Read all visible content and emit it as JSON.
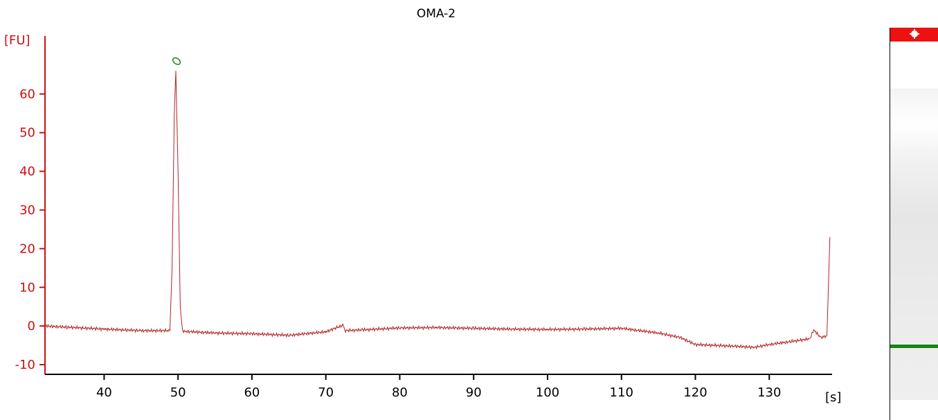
{
  "header": {
    "title": "OMA-2"
  },
  "chart_data": {
    "type": "line",
    "title": "OMA-2",
    "xlabel": "[s]",
    "ylabel": "[FU]",
    "xlim": [
      32,
      138.5
    ],
    "ylim": [
      -12.5,
      75
    ],
    "x_ticks": [
      40,
      50,
      60,
      70,
      80,
      90,
      100,
      110,
      120,
      130
    ],
    "y_ticks": [
      -10,
      0,
      10,
      20,
      30,
      40,
      50,
      60
    ],
    "grid": false,
    "line_color": "#b22222",
    "axis_color": "#cc1111",
    "peak_marker": {
      "x": 49.8,
      "y": 68.5,
      "color": "#118811"
    },
    "series": [
      {
        "values_x": [
          32,
          35,
          40,
          45,
          48.9,
          49.2,
          49.5,
          49.7,
          50.0,
          50.3,
          50.6,
          51,
          55,
          60,
          65,
          70,
          72.3,
          72.6,
          75,
          80,
          85,
          90,
          95,
          100,
          105,
          110,
          115,
          118,
          120,
          125,
          128,
          130,
          133,
          135.5,
          136,
          137,
          137.8,
          138,
          138.2
        ],
        "values_y": [
          0,
          -0.3,
          -0.8,
          -1.2,
          -1.2,
          15,
          55,
          66,
          40,
          5,
          -1.2,
          -1.4,
          -1.8,
          -2.0,
          -2.4,
          -1.5,
          0.2,
          -1.2,
          -1.0,
          -0.5,
          -0.4,
          -0.6,
          -0.8,
          -0.9,
          -0.8,
          -0.6,
          -1.8,
          -3.0,
          -4.8,
          -5.2,
          -5.5,
          -4.8,
          -4.0,
          -3.3,
          -1.0,
          -3.0,
          -2.5,
          10,
          23
        ]
      }
    ]
  },
  "gel": {
    "marker_band_color": "#ee1111",
    "sample_band_color": "#118811"
  }
}
